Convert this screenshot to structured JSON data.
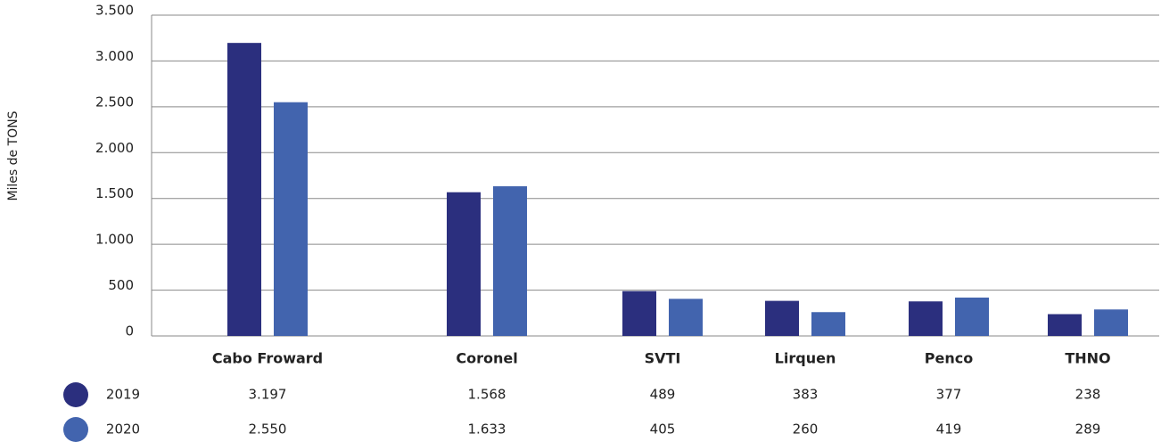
{
  "chart_data": {
    "type": "bar",
    "y_label": "Miles de TONS",
    "categories": [
      "Cabo Froward",
      "Coronel",
      "SVTI",
      "Lirquen",
      "Penco",
      "THNO"
    ],
    "series": [
      {
        "name": "2019",
        "color": "#2b2f7e",
        "values": [
          3197,
          1568,
          489,
          383,
          377,
          238
        ],
        "value_labels": [
          "3.197",
          "1.568",
          "489",
          "383",
          "377",
          "238"
        ]
      },
      {
        "name": "2020",
        "color": "#4264ae",
        "values": [
          2550,
          1633,
          405,
          260,
          419,
          289
        ],
        "value_labels": [
          "2.550",
          "1.633",
          "405",
          "260",
          "419",
          "289"
        ]
      }
    ],
    "ylim": [
      0,
      3500
    ],
    "yticks": [
      0,
      500,
      {
        "value": 1000,
        "label": "1.000"
      },
      {
        "value": 1500,
        "label": "1.500"
      },
      {
        "value": 2000,
        "label": "2.000"
      },
      {
        "value": 2500,
        "label": "2.500"
      },
      {
        "value": 3000,
        "label": "3.000"
      },
      {
        "value": 3500,
        "label": "3.500"
      }
    ],
    "grid": true
  }
}
